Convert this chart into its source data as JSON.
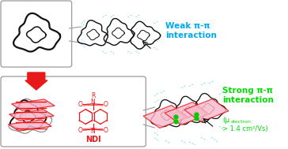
{
  "fig_width": 3.64,
  "fig_height": 1.89,
  "dpi": 100,
  "bg_color": "#ffffff",
  "arrow_color": "#e8191a",
  "weak_text_color": "#00aaee",
  "strong_text_color": "#00dd00",
  "ndi_color": "#e8191a",
  "pink_face_color": "#f9b8cb",
  "pink_edge_color": "#e8191a",
  "green_dot_color": "#00cc00",
  "cyan_dash_color": "#55ccee",
  "mol_color": "#111111",
  "mol_gray_color": "#999999",
  "box_edge_color": "#999999",
  "weak_label": "Weak π-π\ninteraction",
  "strong_label": "Strong π-π\ninteraction",
  "mobility_label1": "(μ",
  "mobility_label2": "electron",
  "mobility_label3": "\n> 1.4 cm²/Vs)"
}
